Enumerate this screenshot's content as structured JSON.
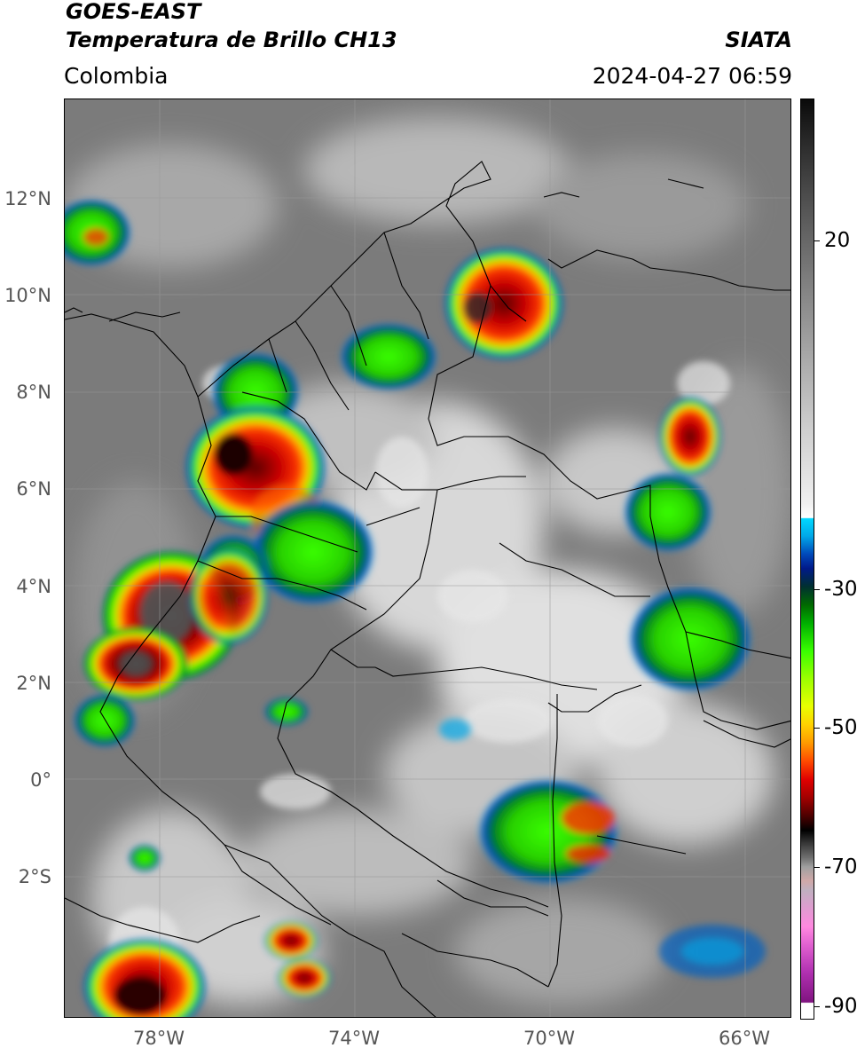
{
  "header": {
    "title_main": "GOES-EAST",
    "title_sub": "Temperatura de Brillo CH13",
    "region": "Colombia",
    "agency": "SIATA",
    "timestamp": "2024-04-27 06:59"
  },
  "map": {
    "lat_labels": [
      "12°N",
      "10°N",
      "8°N",
      "6°N",
      "4°N",
      "2°N",
      "0°",
      "2°S"
    ],
    "lon_labels": [
      "78°W",
      "74°W",
      "70°W",
      "66°W"
    ]
  },
  "colorbar": {
    "labels": [
      "20",
      "-30",
      "-50",
      "-70",
      "-90"
    ]
  },
  "colors": {
    "deep_convection": "#000000",
    "very_cold": "#e00000",
    "cold": "#ffd200",
    "moderate": "#39ff00",
    "cool": "#0048b8",
    "warm_cloud": "#cfcfcf",
    "clear": "#7d7d7d"
  }
}
